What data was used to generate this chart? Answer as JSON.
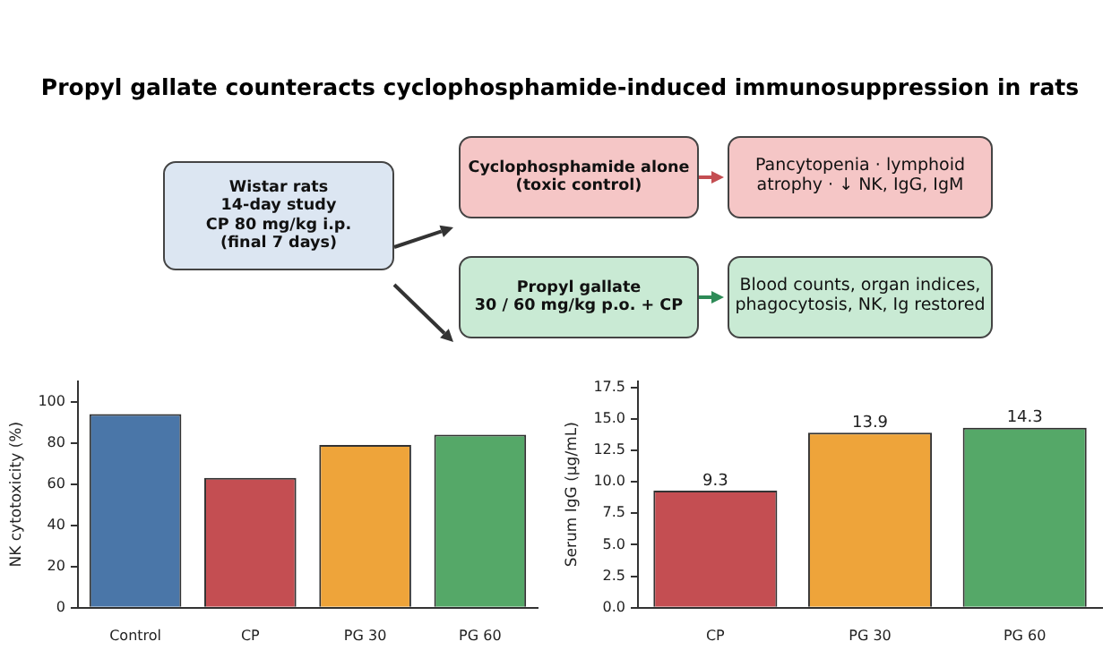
{
  "chart_data": [
    {
      "type": "other",
      "title": "Propyl gallate counteracts cyclophosphamide-induced immunosuppression in rats",
      "annotations": [
        "Wistar rats\n14-day study\nCP 80 mg/kg i.p.\n(final 7 days)",
        "Cyclophosphamide alone\n(toxic control)",
        "Pancytopenia · lymphoid\natrophy · ↓ NK, IgG, IgM",
        "Propyl gallate\n30 / 60 mg/kg p.o. + CP",
        "Blood counts, organ indices,\nphagocytosis, NK, Ig restored"
      ]
    },
    {
      "type": "bar",
      "categories": [
        "Control",
        "CP",
        "PG 30",
        "PG 60"
      ],
      "values": [
        94,
        63,
        79,
        84
      ],
      "colors": [
        "#4a76a8",
        "#c44e52",
        "#eea43a",
        "#55a868"
      ],
      "ylabel": "NK cytotoxicity (%)",
      "ylim": [
        0,
        110
      ],
      "yticks": [
        0,
        20,
        40,
        60,
        80,
        100
      ]
    },
    {
      "type": "bar",
      "categories": [
        "CP",
        "PG 30",
        "PG 60"
      ],
      "values": [
        9.3,
        13.9,
        14.3
      ],
      "colors": [
        "#c44e52",
        "#eea43a",
        "#55a868"
      ],
      "ylabel": "Serum IgG (μg/mL)",
      "ylim": [
        0,
        18
      ],
      "data_labels": true,
      "yticks": [
        {
          "value": 0,
          "label": "0.0"
        },
        {
          "value": 2.5,
          "label": "2.5"
        },
        {
          "value": 5,
          "label": "5.0"
        },
        {
          "value": 7.5,
          "label": "7.5"
        },
        {
          "value": 10,
          "label": "10.0"
        },
        {
          "value": 12.5,
          "label": "12.5"
        },
        {
          "value": 15,
          "label": "15.0"
        },
        {
          "value": 17.5,
          "label": "17.5"
        }
      ]
    }
  ]
}
